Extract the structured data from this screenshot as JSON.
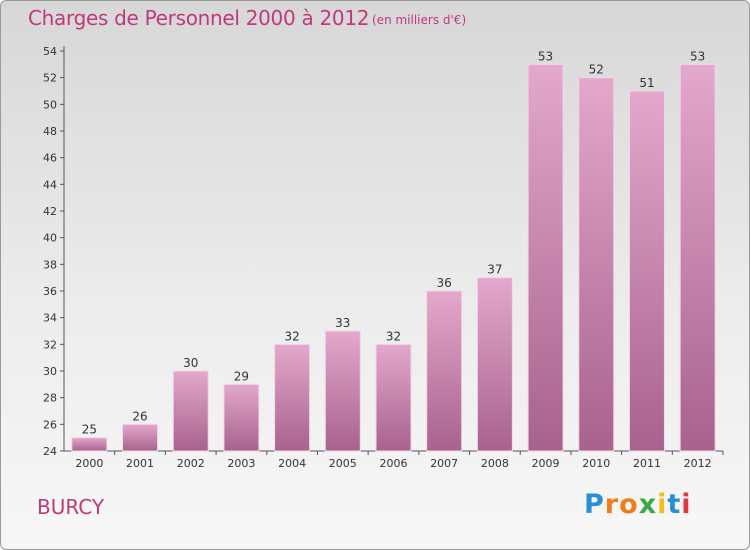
{
  "chart_data": {
    "type": "bar",
    "title": "Charges de Personnel 2000 à 2012",
    "subtitle": "(en milliers d'€)",
    "categories": [
      "2000",
      "2001",
      "2002",
      "2003",
      "2004",
      "2005",
      "2006",
      "2007",
      "2008",
      "2009",
      "2010",
      "2011",
      "2012"
    ],
    "values": [
      25,
      26,
      30,
      29,
      32,
      33,
      32,
      36,
      37,
      53,
      52,
      51,
      53
    ],
    "ylim": [
      24,
      54
    ],
    "ytick_step": 2,
    "grid": false,
    "bar_color": "#d488b4"
  },
  "footer": {
    "place": "BURCY",
    "logo": [
      "P",
      "r",
      "o",
      "x",
      "i",
      "t",
      "i"
    ],
    "logo_colors": [
      "#2a8fd0",
      "#f07c1a",
      "#f07c1a",
      "#3aa84a",
      "#f0c020",
      "#2a8fd0",
      "#e03a3a"
    ]
  }
}
